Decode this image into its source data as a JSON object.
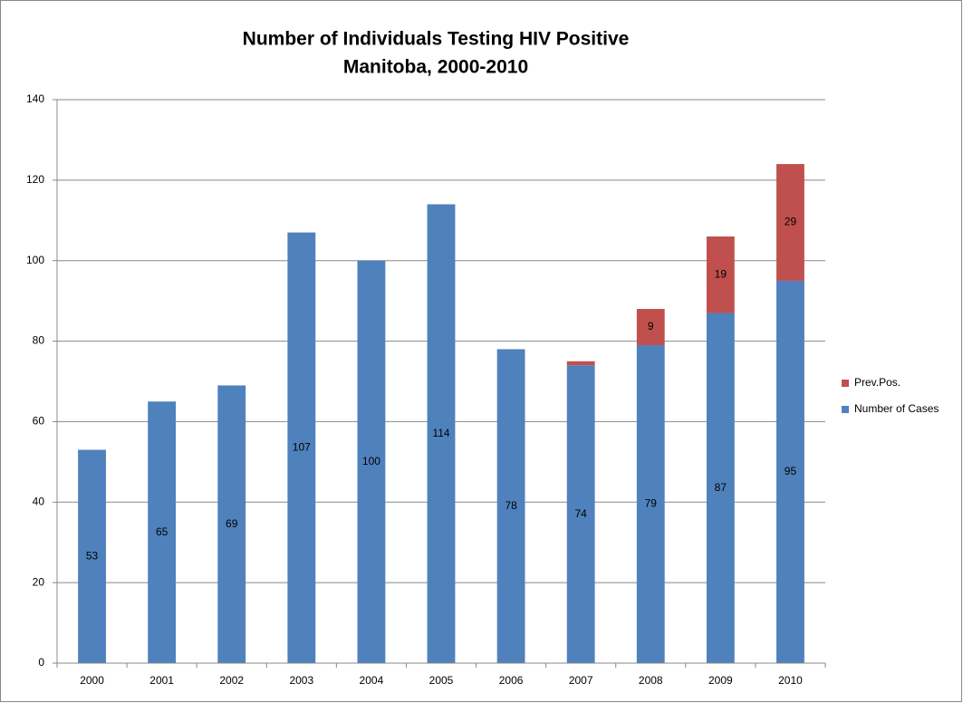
{
  "chart_data": {
    "type": "stacked_bar",
    "title": "Number of Individuals Testing HIV Positive",
    "subtitle": "Manitoba, 2000-2010",
    "categories": [
      "2000",
      "2001",
      "2002",
      "2003",
      "2004",
      "2005",
      "2006",
      "2007",
      "2008",
      "2009",
      "2010"
    ],
    "series": [
      {
        "name": "Number of Cases",
        "color": "#4f81bd",
        "values": [
          53,
          65,
          69,
          107,
          100,
          114,
          78,
          74,
          79,
          87,
          95
        ]
      },
      {
        "name": "Prev.Pos.",
        "color": "#c0504d",
        "values": [
          null,
          null,
          null,
          null,
          null,
          null,
          null,
          1,
          9,
          19,
          29
        ],
        "value_labels": [
          null,
          null,
          null,
          null,
          null,
          null,
          null,
          null,
          "9",
          "19",
          "29"
        ]
      }
    ],
    "ylim": [
      0,
      140
    ],
    "yticks": [
      0,
      20,
      40,
      60,
      80,
      100,
      120,
      140
    ],
    "grid": true,
    "legend": "right"
  }
}
